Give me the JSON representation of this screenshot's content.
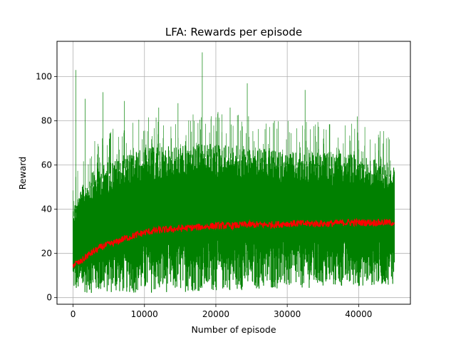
{
  "chart_data": {
    "type": "line",
    "title": "LFA: Rewards per episode",
    "xlabel": "Number of episode",
    "ylabel": "Reward",
    "xlim": [
      -2250,
      47250
    ],
    "ylim": [
      -3,
      116
    ],
    "xticks": [
      0,
      10000,
      20000,
      30000,
      40000
    ],
    "yticks": [
      0,
      20,
      40,
      60,
      80,
      100
    ],
    "grid": true,
    "legend": "none",
    "series": [
      {
        "color": "#008000",
        "description_kind": "raw-per-episode",
        "x_range": [
          0,
          45000
        ],
        "lower_envelope": [
          [
            0,
            3
          ],
          [
            2000,
            2
          ],
          [
            10000,
            2
          ],
          [
            20000,
            3
          ],
          [
            30000,
            4
          ],
          [
            40000,
            5
          ],
          [
            45000,
            6
          ]
        ],
        "upper_envelope": [
          [
            0,
            42
          ],
          [
            2000,
            55
          ],
          [
            5000,
            62
          ],
          [
            10000,
            68
          ],
          [
            20000,
            70
          ],
          [
            30000,
            66
          ],
          [
            40000,
            65
          ],
          [
            45000,
            60
          ]
        ],
        "peaks": [
          [
            400,
            103
          ],
          [
            1700,
            90
          ],
          [
            4200,
            93
          ],
          [
            7200,
            89
          ],
          [
            12000,
            86
          ],
          [
            14700,
            88
          ],
          [
            18100,
            111
          ],
          [
            20300,
            84
          ],
          [
            22000,
            86
          ],
          [
            24400,
            97
          ],
          [
            28200,
            80
          ],
          [
            32500,
            94
          ],
          [
            39800,
            82
          ]
        ]
      },
      {
        "color": "#ff0000",
        "description_kind": "moving-average",
        "x": [
          0,
          1000,
          2000,
          3000,
          4000,
          5000,
          6000,
          7000,
          8000,
          9000,
          10000,
          12000,
          14000,
          16000,
          18000,
          20000,
          22000,
          24000,
          26000,
          28000,
          30000,
          32000,
          34000,
          36000,
          38000,
          40000,
          42000,
          44000,
          45000
        ],
        "y": [
          15,
          16,
          19,
          21,
          23,
          24,
          25,
          26.5,
          27.5,
          28.5,
          29.5,
          30.5,
          31,
          31.5,
          32,
          32.5,
          32.5,
          33,
          33,
          33,
          33.5,
          33.5,
          33.5,
          33.5,
          34,
          34,
          34,
          34,
          34
        ]
      }
    ]
  }
}
